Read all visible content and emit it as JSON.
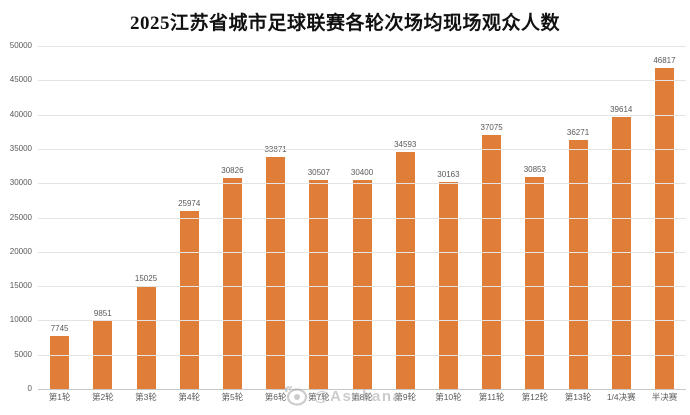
{
  "chart_data": {
    "type": "bar",
    "title": "2025江苏省城市足球联赛各轮次场均现场观众人数",
    "categories": [
      "第1轮",
      "第2轮",
      "第3轮",
      "第4轮",
      "第5轮",
      "第6轮",
      "第7轮",
      "第8轮",
      "第9轮",
      "第10轮",
      "第11轮",
      "第12轮",
      "第13轮",
      "1/4决赛",
      "半决赛"
    ],
    "values": [
      7745,
      9851,
      15025,
      25974,
      30826,
      33871,
      30507,
      30400,
      34593,
      30163,
      37075,
      30853,
      36271,
      39614,
      46817
    ],
    "xlabel": "",
    "ylabel": "",
    "ylim": [
      0,
      50000
    ],
    "ytick_step": 5000,
    "grid": true,
    "legend_position": "none",
    "bar_color": "#E07E39",
    "value_label_color": "#595959",
    "tick_label_color": "#595959",
    "gridline_color": "#E4E4E4",
    "axis_line_color": "#C8C8C8",
    "title_color": "#111111"
  },
  "watermark": {
    "icon": "weibo-eye-icon",
    "text": "@Asakana"
  }
}
